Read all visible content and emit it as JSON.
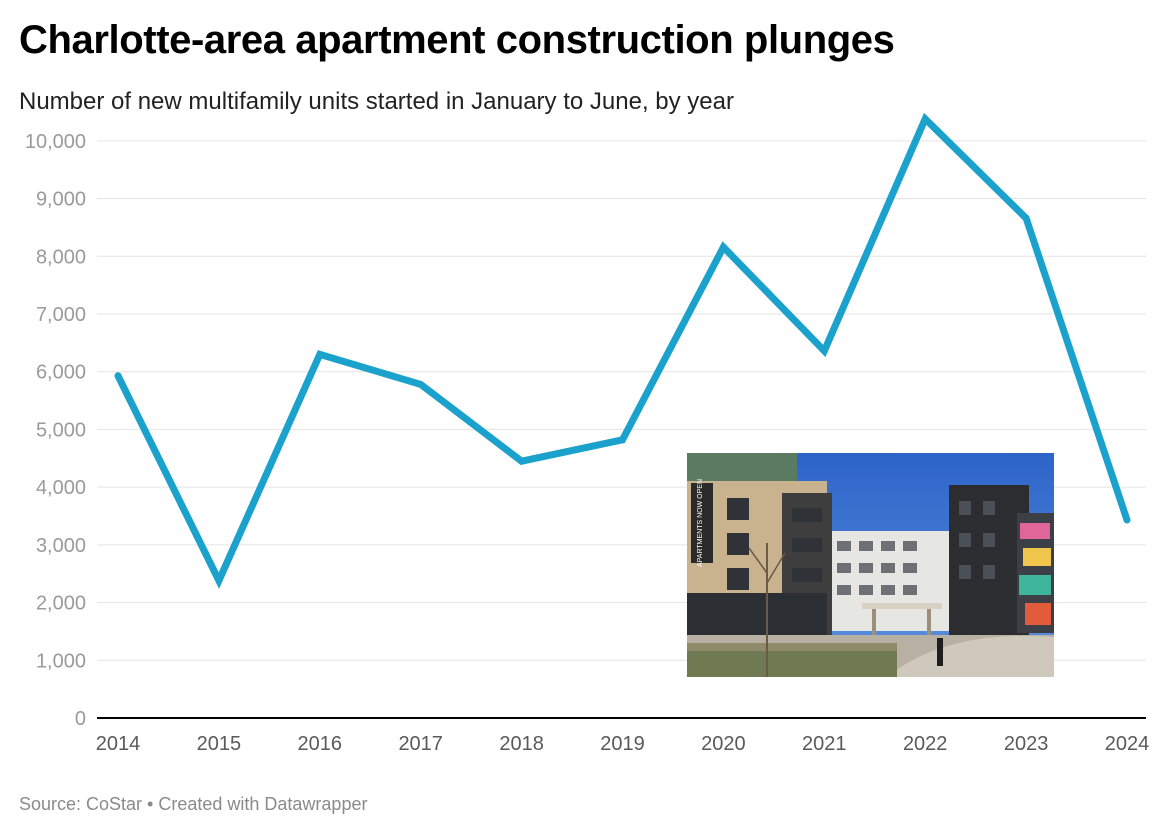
{
  "chart_data": {
    "type": "line",
    "title": "Charlotte-area apartment construction plunges",
    "subtitle": "Number of new multifamily units started in January to June, by year",
    "xlabel": "",
    "ylabel": "",
    "x": [
      "2014",
      "2015",
      "2016",
      "2017",
      "2018",
      "2019",
      "2020",
      "2021",
      "2022",
      "2023",
      "2024"
    ],
    "series": [
      {
        "values": [
          5930,
          2380,
          6300,
          5780,
          4450,
          4820,
          8160,
          6360,
          10380,
          8660,
          3430
        ]
      }
    ],
    "ylim": [
      0,
      10500
    ],
    "yticks": [
      0,
      1000,
      2000,
      3000,
      4000,
      5000,
      6000,
      7000,
      8000,
      9000,
      10000
    ],
    "ytick_labels": [
      "0",
      "1,000",
      "2,000",
      "3,000",
      "4,000",
      "5,000",
      "6,000",
      "7,000",
      "8,000",
      "9,000",
      "10,000"
    ],
    "grid": true,
    "line_color": "#1aa1cc"
  },
  "photo": {
    "sign_text": "APARTMENTS NOW OPEN"
  },
  "source": "Source: CoStar • Created with Datawrapper"
}
